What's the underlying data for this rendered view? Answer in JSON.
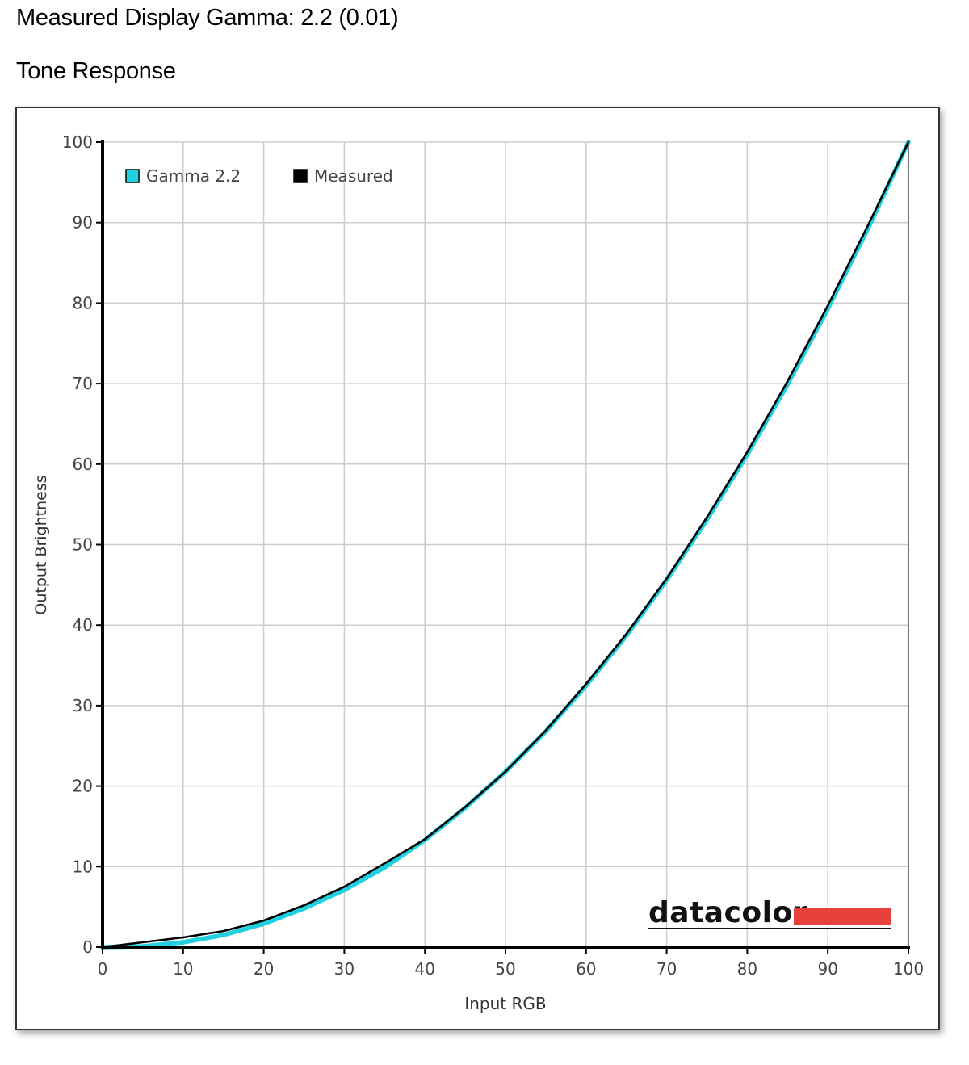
{
  "header": {
    "measured_gamma": "Measured Display Gamma: 2.2 (0.01)",
    "section_title": "Tone Response"
  },
  "logo": {
    "text": "datacolor",
    "accent_color": "#e8403a"
  },
  "colors": {
    "gamma_series": "#20d0e0",
    "measured_series": "#000000",
    "grid": "#cccccc",
    "axis": "#000000"
  },
  "chart_data": {
    "type": "line",
    "xlabel": "Input RGB",
    "ylabel": "Output Brightness",
    "xlim": [
      0,
      100
    ],
    "ylim": [
      0,
      100
    ],
    "xticks": [
      0,
      10,
      20,
      30,
      40,
      50,
      60,
      70,
      80,
      90,
      100
    ],
    "yticks": [
      0,
      10,
      20,
      30,
      40,
      50,
      60,
      70,
      80,
      90,
      100
    ],
    "grid": true,
    "legend_position": "top-left",
    "series": [
      {
        "name": "Gamma 2.2",
        "color": "#20d0e0",
        "x": [
          0,
          5,
          10,
          15,
          20,
          25,
          30,
          35,
          40,
          45,
          50,
          55,
          60,
          65,
          70,
          75,
          80,
          85,
          90,
          95,
          100
        ],
        "y": [
          0,
          0.1,
          0.6,
          1.5,
          2.9,
          4.8,
          7.1,
          9.9,
          13.3,
          17.3,
          21.8,
          26.8,
          32.5,
          38.7,
          45.6,
          53.1,
          61.2,
          69.9,
          79.3,
          89.3,
          100
        ]
      },
      {
        "name": "Measured",
        "color": "#000000",
        "x": [
          0,
          5,
          10,
          15,
          20,
          25,
          30,
          35,
          40,
          45,
          50,
          55,
          60,
          65,
          70,
          75,
          80,
          85,
          90,
          95,
          100
        ],
        "y": [
          0,
          0.6,
          1.2,
          2.0,
          3.3,
          5.2,
          7.5,
          10.4,
          13.4,
          17.4,
          21.8,
          26.9,
          32.7,
          38.9,
          45.8,
          53.4,
          61.5,
          70.3,
          79.7,
          89.7,
          100
        ]
      }
    ]
  }
}
